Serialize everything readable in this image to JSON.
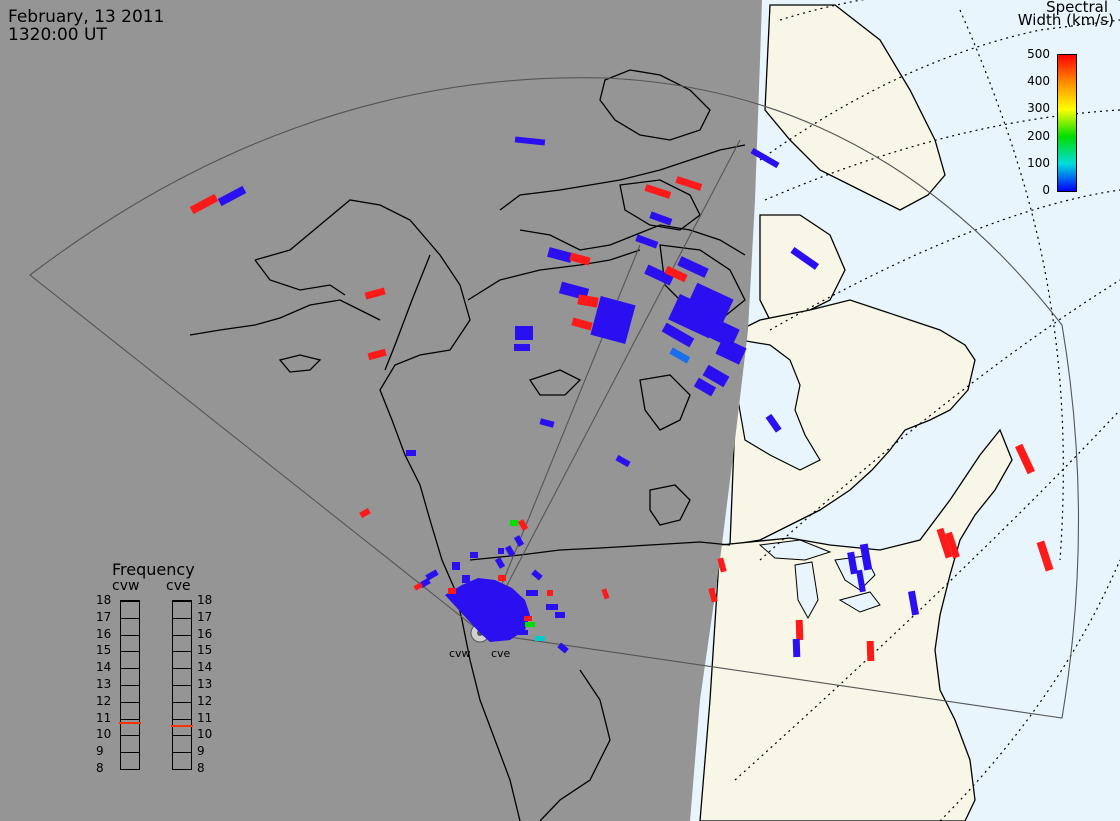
{
  "header": {
    "date": "February, 13 2011",
    "time": "1320:00 UT"
  },
  "colorbar": {
    "title_line1": "Spectral",
    "title_line2": "Width (km/s)",
    "ticks": [
      "500",
      "400",
      "300",
      "200",
      "100",
      "0"
    ],
    "gradient_colors": [
      "#ff0000",
      "#ff8c00",
      "#ffff00",
      "#00dd00",
      "#00dddd",
      "#0000ff"
    ]
  },
  "frequency_panel": {
    "title": "Frequency",
    "radars": [
      "cvw",
      "cve"
    ],
    "ticks": [
      "18",
      "17",
      "16",
      "15",
      "14",
      "13",
      "12",
      "11",
      "10",
      "9",
      "8"
    ],
    "cvw_mhz": 10.8,
    "cve_mhz": 10.6,
    "marker_color": "#ff3300"
  },
  "sites": [
    "cvw",
    "cve"
  ],
  "colors": {
    "night": "#959595",
    "day_land": "#f8f7e7",
    "day_ocean": "#e8f5fc",
    "low_width": "#2a10f0",
    "high_width": "#ff1a1a"
  }
}
